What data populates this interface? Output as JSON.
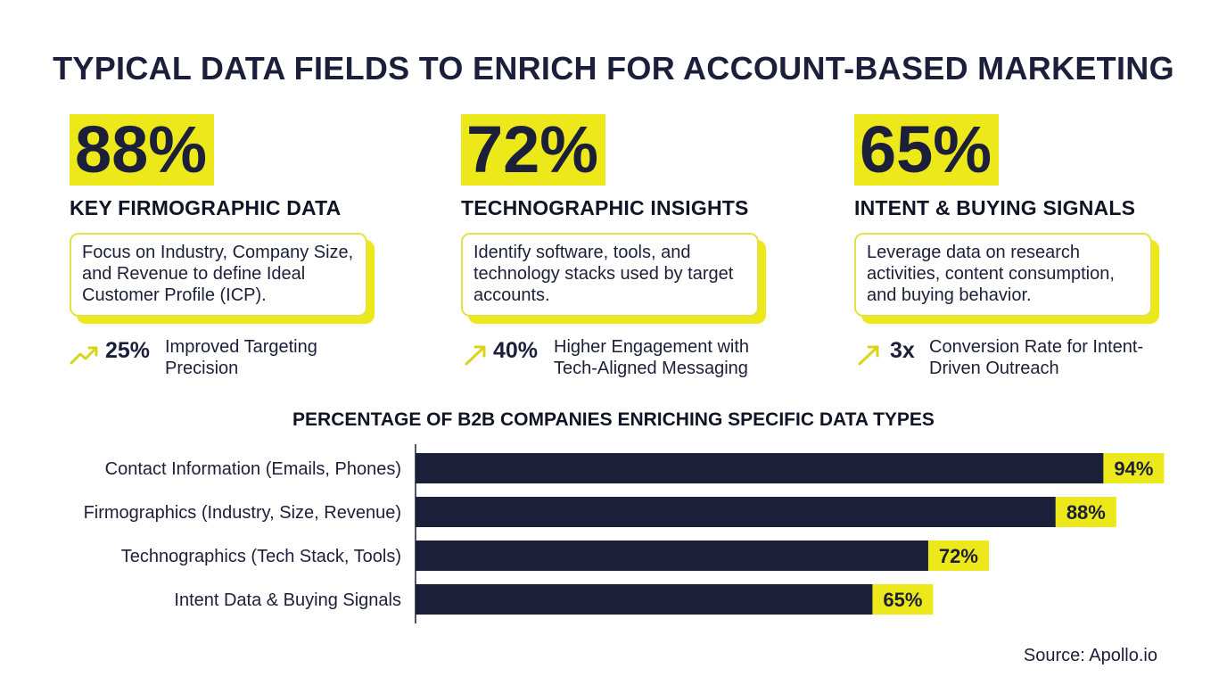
{
  "title": "TYPICAL DATA FIELDS TO ENRICH FOR ACCOUNT-BASED MARKETING",
  "cards": [
    {
      "percent": "88%",
      "label": "KEY FIRMOGRAPHIC DATA",
      "description": "Focus on Industry, Company Size, and Revenue to define Ideal Customer Profile (ICP).",
      "stat_value": "25%",
      "stat_text": "Improved Targeting Precision",
      "icon": "trend-up-icon"
    },
    {
      "percent": "72%",
      "label": "TECHNOGRAPHIC INSIGHTS",
      "description": "Identify software, tools, and technology stacks used by target accounts.",
      "stat_value": "40%",
      "stat_text": "Higher Engagement with Tech-Aligned Messaging",
      "icon": "arrow-up-right-icon"
    },
    {
      "percent": "65%",
      "label": "INTENT & BUYING SIGNALS",
      "description": "Leverage data on research activities, content consumption, and buying behavior.",
      "stat_value": "3x",
      "stat_text": "Conversion Rate for Intent-Driven Outreach",
      "icon": "arrow-up-right-icon"
    }
  ],
  "colors": {
    "accent": "#ece81a",
    "dark": "#1c1f3a",
    "bar": "#1c1f3a"
  },
  "chart_data": {
    "type": "bar",
    "orientation": "horizontal",
    "title": "PERCENTAGE OF B2B COMPANIES ENRICHING SPECIFIC DATA TYPES",
    "categories": [
      "Contact Information (Emails, Phones)",
      "Firmographics (Industry, Size, Revenue)",
      "Technographics (Tech Stack, Tools)",
      "Intent Data & Buying Signals"
    ],
    "values": [
      94,
      88,
      72,
      65
    ],
    "value_labels": [
      "94%",
      "88%",
      "72%",
      "65%"
    ],
    "xlim": [
      0,
      100
    ],
    "grid": false
  },
  "source": "Source: Apollo.io"
}
